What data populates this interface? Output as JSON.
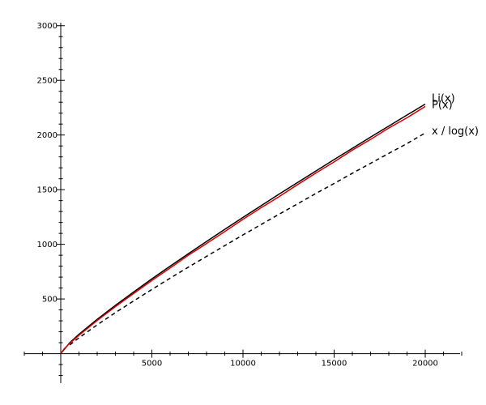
{
  "chart_data": {
    "type": "line",
    "title": "",
    "xlabel": "",
    "ylabel": "",
    "xlim": [
      -2000,
      22000
    ],
    "ylim": [
      -270,
      3050
    ],
    "x_ticks": [
      5000,
      10000,
      15000,
      20000
    ],
    "y_ticks": [
      500,
      1000,
      1500,
      2000,
      2500,
      3000
    ],
    "x_tick_labels": [
      "5000",
      "10000",
      "15000",
      "20000"
    ],
    "y_tick_labels": [
      "500",
      "1000",
      "1500",
      "2000",
      "2500",
      "3000"
    ],
    "grid": false,
    "legend": "none (series labelled at line ends)",
    "series": [
      {
        "name": "Li(x)",
        "color": "#000000",
        "dash": "solid",
        "x": [
          2,
          500,
          1000,
          2000,
          3000,
          4000,
          5000,
          6000,
          7000,
          8000,
          9000,
          10000,
          11000,
          12000,
          13000,
          14000,
          15000,
          16000,
          17000,
          18000,
          19000,
          20000
        ],
        "y": [
          0,
          101,
          177,
          314,
          442,
          564,
          684,
          800,
          914,
          1026,
          1137,
          1246,
          1354,
          1461,
          1566,
          1671,
          1775,
          1878,
          1981,
          2082,
          2183,
          2283
        ]
      },
      {
        "name": "P(x)",
        "color": "#dd0000",
        "dash": "solid",
        "x": [
          2,
          200,
          500,
          1000,
          2000,
          3000,
          4000,
          5000,
          6000,
          7000,
          8000,
          9000,
          10000,
          11000,
          12000,
          13000,
          14000,
          15000,
          16000,
          17000,
          18000,
          19000,
          20000
        ],
        "y": [
          1,
          46,
          95,
          168,
          303,
          430,
          550,
          669,
          783,
          900,
          1007,
          1117,
          1229,
          1335,
          1438,
          1547,
          1652,
          1754,
          1862,
          1960,
          2064,
          2158,
          2262
        ]
      },
      {
        "name": "x / log(x)",
        "color": "#000000",
        "dash": "dashed",
        "x": [
          500,
          1000,
          2000,
          3000,
          4000,
          5000,
          6000,
          7000,
          8000,
          9000,
          10000,
          11000,
          12000,
          13000,
          14000,
          15000,
          16000,
          17000,
          18000,
          19000,
          20000
        ],
        "y": [
          80,
          145,
          263,
          375,
          482,
          587,
          690,
          791,
          890,
          988,
          1086,
          1182,
          1277,
          1371,
          1465,
          1557,
          1650,
          1741,
          1832,
          1922,
          2019
        ]
      }
    ]
  }
}
